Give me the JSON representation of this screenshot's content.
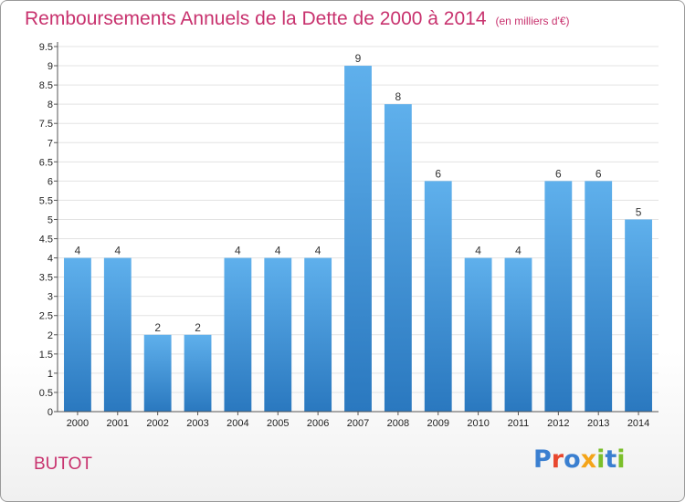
{
  "header": {
    "title": "Remboursements Annuels de la Dette de 2000 à 2014",
    "subtitle": "(en milliers d'€)"
  },
  "footer": {
    "commune": "BUTOT",
    "brand_letters": [
      {
        "char": "P",
        "color": "#3a7fd0"
      },
      {
        "char": "r",
        "color": "#e8472e"
      },
      {
        "char": "o",
        "color": "#3a7fd0"
      },
      {
        "char": "x",
        "color": "#f4a418"
      },
      {
        "char": "i",
        "color": "#7bbf2a"
      },
      {
        "char": "t",
        "color": "#3a7fd0"
      },
      {
        "char": "i",
        "color": "#7bbf2a"
      }
    ]
  },
  "chart_data": {
    "type": "bar",
    "title": "Remboursements Annuels de la Dette de 2000 à 2014",
    "subtitle": "(en milliers d'€)",
    "xlabel": "",
    "ylabel": "",
    "categories": [
      "2000",
      "2001",
      "2002",
      "2003",
      "2004",
      "2005",
      "2006",
      "2007",
      "2008",
      "2009",
      "2010",
      "2011",
      "2012",
      "2013",
      "2014"
    ],
    "values": [
      4,
      4,
      2,
      2,
      4,
      4,
      4,
      9,
      8,
      6,
      4,
      4,
      6,
      6,
      5
    ],
    "data_labels": [
      "4",
      "4",
      "2",
      "2",
      "4",
      "4",
      "4",
      "9",
      "8",
      "6",
      "4",
      "4",
      "6",
      "6",
      "5"
    ],
    "ylim": [
      0,
      9.5
    ],
    "yticks": [
      "0",
      "0.5",
      "1",
      "1.5",
      "2",
      "2.5",
      "3",
      "3.5",
      "4",
      "4.5",
      "5",
      "5.5",
      "6",
      "6.5",
      "7",
      "7.5",
      "8",
      "8.5",
      "9",
      "9.5"
    ],
    "grid": true,
    "colors": {
      "bar_top": "#5fb0ec",
      "bar_bottom": "#2a78bf",
      "grid": "#e3e3e3",
      "axis": "#555555"
    }
  }
}
